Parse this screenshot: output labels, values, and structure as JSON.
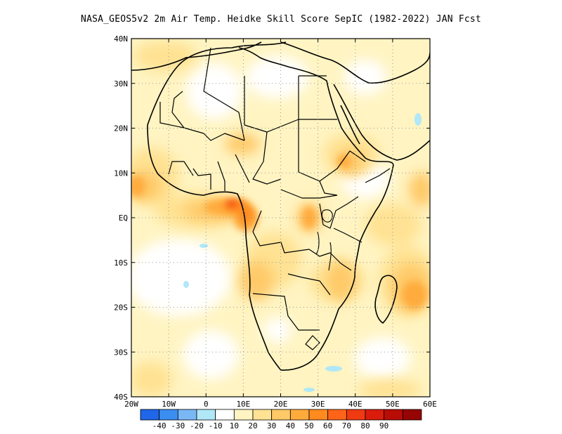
{
  "title": "NASA_GEOS5v2  2m Air Temp. Heidke Skill Score SepIC (1982-2022) JAN Fcst",
  "map": {
    "lon_range": [
      -20,
      60
    ],
    "lat_range": [
      -40,
      40
    ],
    "lon_ticks": [
      {
        "value": -20,
        "label": "20W"
      },
      {
        "value": -10,
        "label": "10W"
      },
      {
        "value": 0,
        "label": "0"
      },
      {
        "value": 10,
        "label": "10E"
      },
      {
        "value": 20,
        "label": "20E"
      },
      {
        "value": 30,
        "label": "30E"
      },
      {
        "value": 40,
        "label": "40E"
      },
      {
        "value": 50,
        "label": "50E"
      },
      {
        "value": 60,
        "label": "60E"
      }
    ],
    "lat_ticks": [
      {
        "value": 40,
        "label": "40N"
      },
      {
        "value": 30,
        "label": "30N"
      },
      {
        "value": 20,
        "label": "20N"
      },
      {
        "value": 10,
        "label": "10N"
      },
      {
        "value": 0,
        "label": "EQ"
      },
      {
        "value": -10,
        "label": "10S"
      },
      {
        "value": -20,
        "label": "20S"
      },
      {
        "value": -30,
        "label": "30S"
      },
      {
        "value": -40,
        "label": "40S"
      }
    ],
    "gridlines": "dotted"
  },
  "colorbar": {
    "colors": [
      "#1f66e8",
      "#3b8ef0",
      "#7ab8f5",
      "#b0e8f8",
      "#ffffff",
      "#fff4c2",
      "#ffe293",
      "#ffc968",
      "#ffab3c",
      "#ff8a1f",
      "#ff6418",
      "#f03a12",
      "#d91c0c",
      "#b80c06",
      "#960404"
    ],
    "labels": [
      "-40",
      "-30",
      "-20",
      "-10",
      "10",
      "20",
      "30",
      "40",
      "50",
      "60",
      "70",
      "80",
      "90"
    ]
  },
  "chart_data": {
    "type": "heatmap",
    "title": "NASA_GEOS5v2  2m Air Temp. Heidke Skill Score SepIC (1982-2022) JAN Fcst",
    "x_range": [
      -20,
      60
    ],
    "y_range": [
      -40,
      40
    ],
    "scale_breaks": [
      -40,
      -30,
      -20,
      -10,
      10,
      20,
      30,
      40,
      50,
      60,
      70,
      80,
      90
    ],
    "regions": [
      {
        "lon": 3,
        "lat": 4,
        "value": 70
      },
      {
        "lon": 8,
        "lat": 2,
        "value": 60
      },
      {
        "lon": 10,
        "lat": 0,
        "value": 55
      },
      {
        "lon": -8,
        "lat": 5,
        "value": 40
      },
      {
        "lon": -18,
        "lat": 9,
        "value": 45
      },
      {
        "lon": 22,
        "lat": 0,
        "value": 50
      },
      {
        "lon": 38,
        "lat": 12,
        "value": 45
      },
      {
        "lon": 55,
        "lat": -15,
        "value": 50
      },
      {
        "lon": 58,
        "lat": -12,
        "value": 40
      },
      {
        "lon": 15,
        "lat": -12,
        "value": 40
      },
      {
        "lon": 25,
        "lat": -12,
        "value": 40
      },
      {
        "lon": 30,
        "lat": 22,
        "value": 30
      },
      {
        "lon": 5,
        "lat": 36,
        "value": 35
      },
      {
        "lon": 47,
        "lat": -22,
        "value": 45
      },
      {
        "lon": 40,
        "lat": -6,
        "value": 30
      },
      {
        "lon": -5,
        "lat": -15,
        "value": 5
      },
      {
        "lon": 30,
        "lat": 15,
        "value": 15
      },
      {
        "lon": 45,
        "lat": 5,
        "value": 5
      }
    ]
  }
}
